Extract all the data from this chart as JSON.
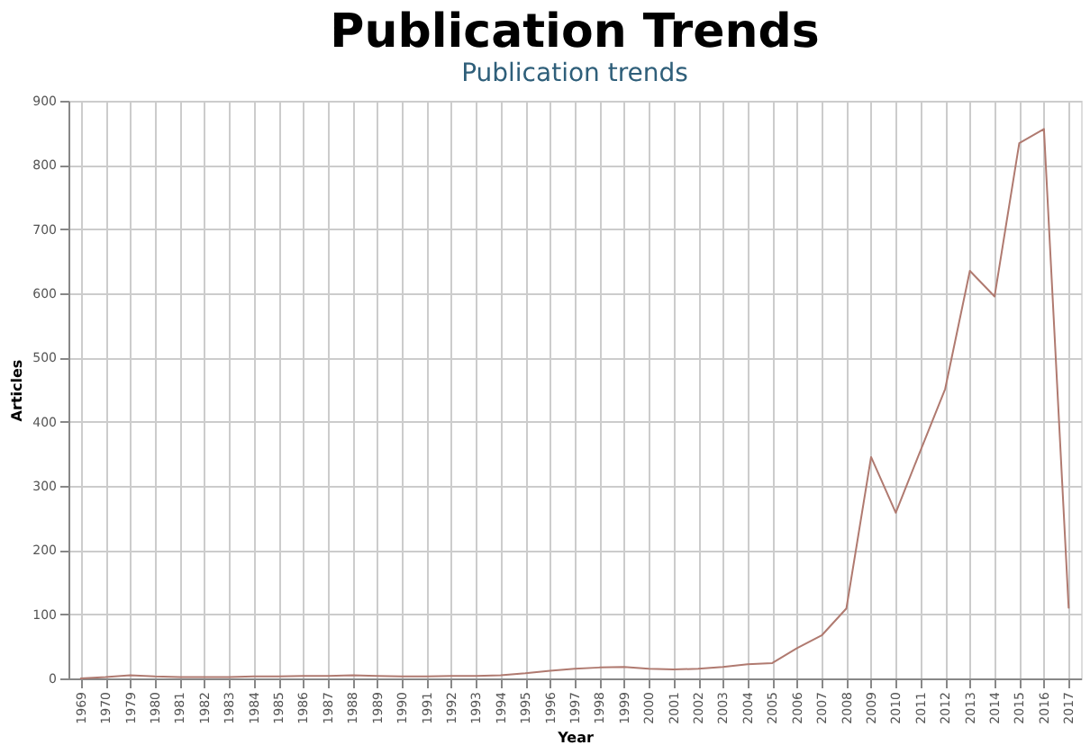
{
  "chart_data": {
    "type": "line",
    "title": "Publication Trends",
    "xlabel": "Year",
    "ylabel": "Articles",
    "categories": [
      "1969",
      "1970",
      "1979",
      "1980",
      "1981",
      "1982",
      "1983",
      "1984",
      "1985",
      "1986",
      "1987",
      "1988",
      "1989",
      "1990",
      "1991",
      "1992",
      "1993",
      "1994",
      "1995",
      "1996",
      "1997",
      "1998",
      "1999",
      "2000",
      "2001",
      "2002",
      "2003",
      "2004",
      "2005",
      "2006",
      "2007",
      "2008",
      "2009",
      "2010",
      "2011",
      "2012",
      "2013",
      "2014",
      "2015",
      "2016",
      "2017"
    ],
    "series": [
      {
        "color": "#b07a70",
        "values": [
          0,
          2,
          5,
          3,
          2,
          2,
          2,
          3,
          3,
          4,
          4,
          5,
          4,
          3,
          3,
          4,
          4,
          5,
          8,
          12,
          15,
          17,
          18,
          15,
          14,
          15,
          18,
          22,
          24,
          47,
          67,
          109,
          345,
          258,
          355,
          451,
          635,
          595,
          834,
          856,
          110
        ]
      }
    ],
    "ylim": [
      0,
      900
    ],
    "yticks": [
      0,
      100,
      200,
      300,
      400,
      500,
      600,
      700,
      800,
      900
    ],
    "grid": true,
    "marker": "none",
    "line_style": "solid",
    "annotations": [
      "Publication trends"
    ]
  }
}
